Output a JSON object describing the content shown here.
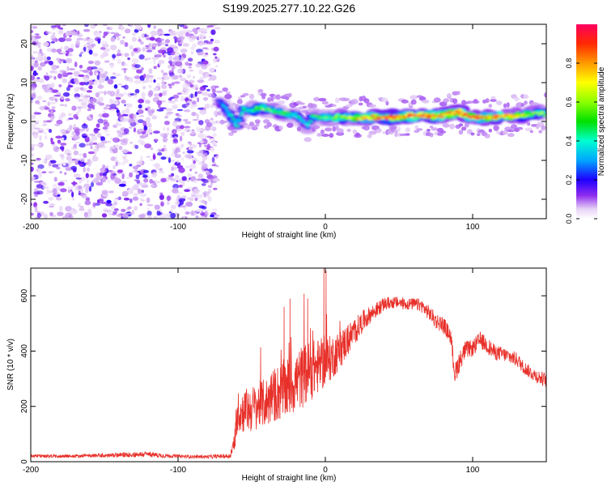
{
  "title": "S199.2025.277.10.22.G26",
  "chart_data": [
    {
      "type": "heatmap",
      "title": "",
      "xlabel": "Height of straight line (km)",
      "ylabel": "Frequency (Hz)",
      "xlim": [
        -200,
        150
      ],
      "ylim": [
        -25,
        25
      ],
      "x_ticks": [
        -200,
        -100,
        0,
        100
      ],
      "x_tick_labels": [
        "-200",
        "-100",
        "0",
        "100"
      ],
      "y_ticks": [
        -20,
        -10,
        0,
        10,
        20
      ],
      "y_tick_labels": [
        "-20",
        "-10",
        "0",
        "10",
        "20"
      ],
      "colorbar": {
        "label": "Normalized spectral amplitude",
        "range": [
          0,
          1
        ],
        "ticks": [
          0,
          0.2,
          0.4,
          0.6,
          0.8
        ],
        "tick_labels": [
          "0.0",
          "0.2",
          "0.4",
          "0.6",
          "0.8"
        ]
      },
      "regions": [
        {
          "name": "noise",
          "x_range": [
            -200,
            -73
          ],
          "y_range": [
            -25,
            25
          ],
          "amplitude": [
            0.0,
            0.2
          ]
        },
        {
          "name": "signal-onset",
          "x_range": [
            -73,
            -55
          ],
          "y_center": [
            5,
            -3
          ],
          "amplitude": [
            0.2,
            0.5
          ]
        },
        {
          "name": "signal-band",
          "x_range": [
            -55,
            150
          ],
          "y_center": 1,
          "amplitude": [
            0.3,
            1.0
          ]
        }
      ],
      "ridge": {
        "x": [
          -72,
          -68,
          -64,
          -60,
          -56,
          -50,
          -44,
          -38,
          -32,
          -26,
          -20,
          -16,
          -12,
          -8,
          -4,
          0,
          10,
          20,
          30,
          40,
          50,
          60,
          70,
          80,
          90,
          100,
          110,
          120,
          130,
          140,
          150
        ],
        "freq": [
          5.0,
          3.5,
          1.5,
          -1.0,
          3.0,
          3.0,
          3.5,
          3.0,
          2.5,
          2.0,
          1.5,
          0.5,
          -1.0,
          1.5,
          1.0,
          1.0,
          1.0,
          1.0,
          1.0,
          1.0,
          1.0,
          1.5,
          1.5,
          1.5,
          2.5,
          1.0,
          1.0,
          1.5,
          1.5,
          2.0,
          2.0
        ],
        "amp": [
          0.3,
          0.35,
          0.4,
          0.45,
          0.4,
          0.5,
          0.55,
          0.55,
          0.5,
          0.45,
          0.4,
          0.35,
          0.4,
          0.45,
          0.5,
          0.5,
          0.6,
          0.7,
          0.85,
          0.9,
          0.85,
          0.95,
          0.9,
          0.85,
          0.95,
          0.9,
          0.8,
          0.85,
          0.7,
          0.6,
          0.55
        ]
      }
    },
    {
      "type": "line",
      "title": "",
      "xlabel": "Height of straight line (km)",
      "ylabel": "SNR (10 * v/v)",
      "xlim": [
        -200,
        150
      ],
      "ylim": [
        0,
        700
      ],
      "x_ticks": [
        -200,
        -100,
        0,
        100
      ],
      "x_tick_labels": [
        "-200",
        "-100",
        "0",
        "100"
      ],
      "y_ticks": [
        0,
        200,
        400,
        600
      ],
      "y_tick_labels": [
        "0",
        "200",
        "400",
        "600"
      ],
      "series": [
        {
          "name": "SNR",
          "color": "#e8302a",
          "x": [
            -200,
            -190,
            -180,
            -170,
            -160,
            -150,
            -140,
            -130,
            -120,
            -110,
            -100,
            -90,
            -80,
            -70,
            -65,
            -62,
            -60,
            -55,
            -50,
            -45,
            -40,
            -35,
            -30,
            -25,
            -20,
            -15,
            -10,
            -5,
            0,
            5,
            10,
            15,
            20,
            25,
            30,
            35,
            40,
            45,
            50,
            55,
            60,
            65,
            70,
            75,
            80,
            85,
            88,
            90,
            95,
            100,
            105,
            110,
            115,
            120,
            125,
            130,
            135,
            140,
            145,
            150
          ],
          "values": [
            22,
            20,
            20,
            20,
            22,
            22,
            24,
            26,
            27,
            22,
            20,
            18,
            18,
            20,
            20,
            60,
            170,
            185,
            190,
            205,
            215,
            240,
            255,
            270,
            290,
            310,
            330,
            345,
            360,
            380,
            405,
            440,
            470,
            505,
            530,
            550,
            570,
            575,
            575,
            570,
            570,
            565,
            540,
            510,
            495,
            455,
            315,
            350,
            405,
            410,
            440,
            420,
            395,
            390,
            380,
            370,
            340,
            320,
            305,
            295
          ],
          "noise": [
            6,
            6,
            6,
            6,
            6,
            8,
            8,
            10,
            10,
            8,
            6,
            6,
            6,
            8,
            8,
            40,
            70,
            80,
            85,
            85,
            90,
            100,
            110,
            110,
            115,
            115,
            110,
            100,
            90,
            80,
            70,
            60,
            50,
            40,
            32,
            28,
            24,
            22,
            22,
            22,
            22,
            24,
            26,
            30,
            30,
            30,
            40,
            40,
            32,
            30,
            30,
            30,
            28,
            26,
            26,
            26,
            24,
            24,
            26,
            26
          ]
        }
      ],
      "spikes": [
        {
          "x": -1,
          "value": 700
        },
        {
          "x": 0.5,
          "value": 690
        },
        {
          "x": -12,
          "value": 590
        },
        {
          "x": -24,
          "value": 590
        },
        {
          "x": -28,
          "value": 560
        }
      ]
    }
  ]
}
